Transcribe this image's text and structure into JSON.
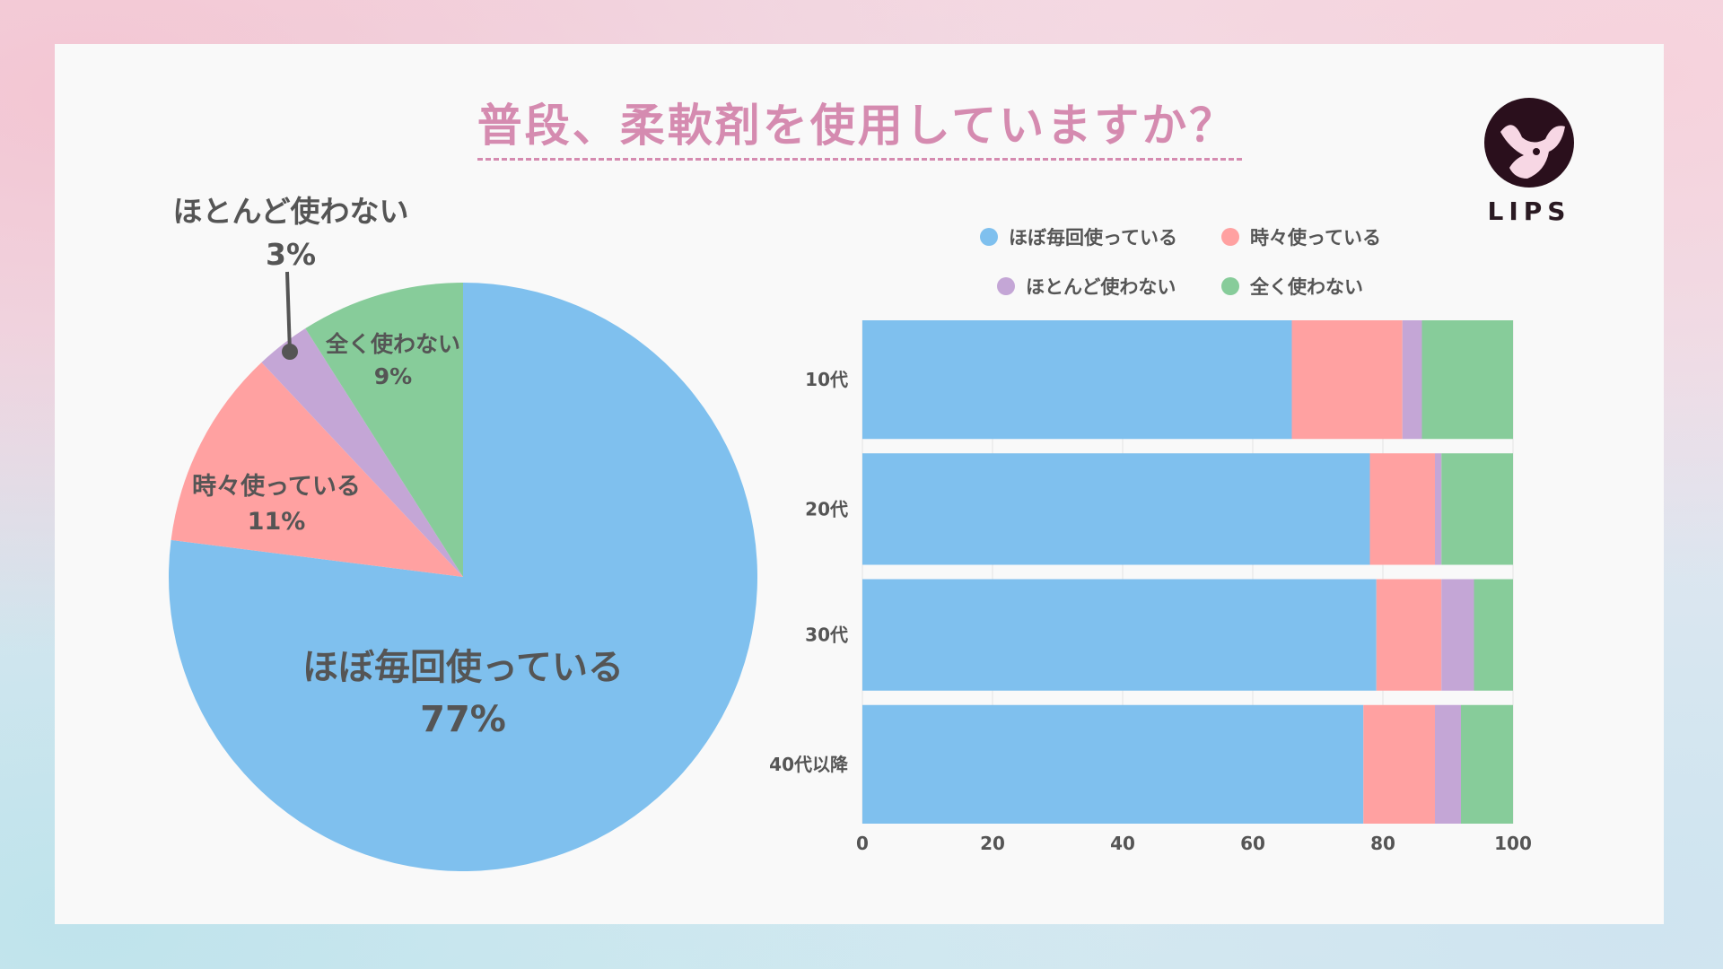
{
  "title": "普段、柔軟剤を使用していますか？",
  "logo_text": "LIPS",
  "colors": {
    "blue": "#7fc0ee",
    "pink": "#ffa1a1",
    "purple": "#c4a6d6",
    "green": "#87cc9a",
    "title": "#d58bb0",
    "text": "#555555"
  },
  "pie_labels": [
    {
      "name": "ほぼ毎回使っている",
      "pct": "77%"
    },
    {
      "name": "時々使っている",
      "pct": "11%"
    },
    {
      "name": "ほとんど使わない",
      "pct": "3%"
    },
    {
      "name": "全く使わない",
      "pct": "9%"
    }
  ],
  "legend": [
    {
      "label": "ほぼ毎回使っている",
      "color": "#7fc0ee"
    },
    {
      "label": "時々使っている",
      "color": "#ffa1a1"
    },
    {
      "label": "ほとんど使わない",
      "color": "#c4a6d6"
    },
    {
      "label": "全く使わない",
      "color": "#87cc9a"
    }
  ],
  "chart_data": [
    {
      "type": "pie",
      "title": "普段、柔軟剤を使用していますか？",
      "categories": [
        "ほぼ毎回使っている",
        "時々使っている",
        "ほとんど使わない",
        "全く使わない"
      ],
      "values": [
        77,
        11,
        3,
        9
      ],
      "colors": [
        "#7fc0ee",
        "#ffa1a1",
        "#c4a6d6",
        "#87cc9a"
      ]
    },
    {
      "type": "bar",
      "orientation": "horizontal",
      "stacked": true,
      "categories": [
        "10代",
        "20代",
        "30代",
        "40代以降"
      ],
      "series": [
        {
          "name": "ほぼ毎回使っている",
          "values": [
            66,
            78,
            79,
            77
          ]
        },
        {
          "name": "時々使っている",
          "values": [
            17,
            10,
            10,
            11
          ]
        },
        {
          "name": "ほとんど使わない",
          "values": [
            3,
            1,
            5,
            4
          ]
        },
        {
          "name": "全く使わない",
          "values": [
            14,
            11,
            6,
            8
          ]
        }
      ],
      "xlim": [
        0,
        100
      ],
      "xticks": [
        "0",
        "20",
        "40",
        "60",
        "80",
        "100"
      ],
      "grid": true,
      "legend_position": "top"
    }
  ]
}
